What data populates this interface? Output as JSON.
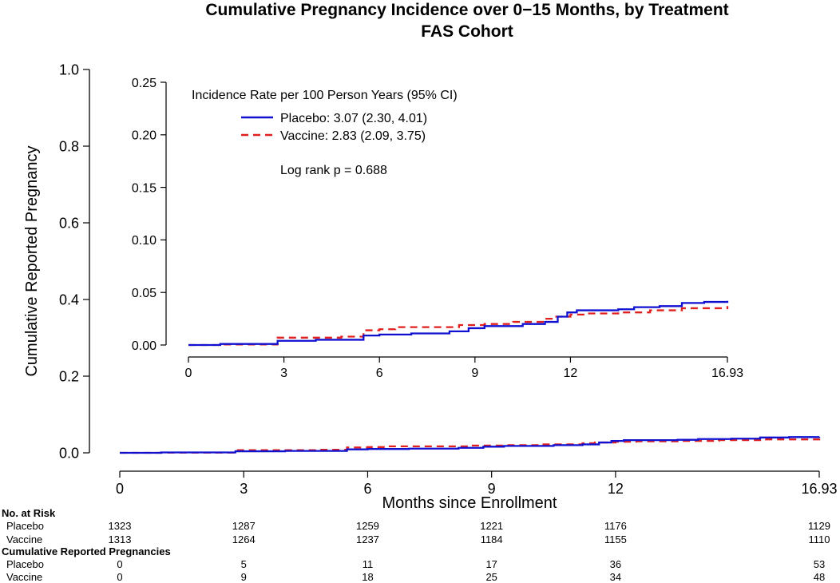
{
  "title_line1": "Cumulative Pregnancy Incidence over 0−15 Months, by Treatment",
  "title_line2": "FAS Cohort",
  "colors": {
    "placebo": "#1010d0",
    "vaccine": "#e0201e"
  },
  "chart_data": [
    {
      "type": "line",
      "role": "main",
      "xlabel": "Months since Enrollment",
      "ylabel": "Cumulative Reported Pregnancy",
      "xlim": [
        0,
        16.93
      ],
      "ylim": [
        0,
        1.0
      ],
      "x_ticks": [
        0,
        3,
        6,
        9,
        12,
        16.93
      ],
      "x_tick_labels": [
        "0",
        "3",
        "6",
        "9",
        "12",
        "16.93"
      ],
      "y_ticks": [
        0,
        0.2,
        0.4,
        0.6,
        0.8,
        1.0
      ],
      "y_tick_labels": [
        "0.0",
        "0.2",
        "0.4",
        "0.6",
        "0.8",
        "1.0"
      ],
      "series": [
        {
          "name": "Placebo",
          "style": "solid",
          "step": true,
          "x": [
            0,
            1,
            2.8,
            4,
            5.5,
            6,
            7,
            8.2,
            8.8,
            9.3,
            10.5,
            11.2,
            11.6,
            11.9,
            12.2,
            13.5,
            14,
            14.8,
            15.5,
            16.2,
            16.93
          ],
          "y": [
            0,
            0.001,
            0.004,
            0.005,
            0.009,
            0.01,
            0.011,
            0.013,
            0.016,
            0.018,
            0.02,
            0.022,
            0.027,
            0.031,
            0.033,
            0.034,
            0.036,
            0.037,
            0.04,
            0.041,
            0.042
          ]
        },
        {
          "name": "Vaccine",
          "style": "dashed",
          "step": true,
          "x": [
            0,
            1,
            2.8,
            4.8,
            5.5,
            6,
            6.5,
            7.5,
            8.5,
            9.3,
            10.2,
            11.2,
            11.5,
            12,
            12.5,
            13.5,
            14.5,
            15.5,
            16.93
          ],
          "y": [
            0,
            0.0005,
            0.007,
            0.008,
            0.014,
            0.015,
            0.017,
            0.017,
            0.019,
            0.02,
            0.022,
            0.025,
            0.027,
            0.029,
            0.03,
            0.031,
            0.033,
            0.035,
            0.037
          ]
        }
      ]
    },
    {
      "type": "line",
      "role": "inset",
      "xlim": [
        0,
        16.93
      ],
      "ylim": [
        0,
        0.25
      ],
      "x_ticks": [
        0,
        3,
        6,
        9,
        12,
        16.93
      ],
      "x_tick_labels": [
        "0",
        "3",
        "6",
        "9",
        "12",
        "16.93"
      ],
      "y_ticks": [
        0,
        0.05,
        0.1,
        0.15,
        0.2,
        0.25
      ],
      "y_tick_labels": [
        "0.00",
        "0.05",
        "0.10",
        "0.15",
        "0.20",
        "0.25"
      ],
      "legend_title": "Incidence Rate per 100 Person Years (95% CI)",
      "legend": [
        {
          "label": "Placebo: 3.07 (2.30, 4.01)",
          "style": "solid"
        },
        {
          "label": "Vaccine: 2.83 (2.09, 3.75)",
          "style": "dashed"
        }
      ],
      "annotation": "Log rank p = 0.688",
      "series": [
        {
          "name": "Placebo",
          "style": "solid",
          "step": true,
          "x": [
            0,
            1,
            2.8,
            4,
            5.5,
            6,
            7,
            8.2,
            8.8,
            9.3,
            10.5,
            11.2,
            11.6,
            11.9,
            12.2,
            13.5,
            14,
            14.8,
            15.5,
            16.2,
            16.93
          ],
          "y": [
            0,
            0.001,
            0.004,
            0.005,
            0.009,
            0.01,
            0.011,
            0.013,
            0.016,
            0.018,
            0.02,
            0.022,
            0.027,
            0.031,
            0.033,
            0.034,
            0.036,
            0.037,
            0.04,
            0.041,
            0.042
          ]
        },
        {
          "name": "Vaccine",
          "style": "dashed",
          "step": true,
          "x": [
            0,
            1,
            2.8,
            4.8,
            5.5,
            6,
            6.5,
            7.5,
            8.5,
            9.3,
            10.2,
            11.2,
            11.5,
            12,
            12.5,
            13.5,
            14.5,
            15.5,
            16.93
          ],
          "y": [
            0,
            0.0005,
            0.007,
            0.008,
            0.014,
            0.015,
            0.017,
            0.017,
            0.019,
            0.02,
            0.022,
            0.025,
            0.027,
            0.029,
            0.03,
            0.031,
            0.033,
            0.035,
            0.037
          ]
        }
      ]
    }
  ],
  "risk_table": {
    "at_risk_header": "No. at Risk",
    "pregnancies_header": "Cumulative Reported Pregnancies",
    "at_risk": [
      {
        "label": "Placebo",
        "values": [
          "1323",
          "1287",
          "1259",
          "1221",
          "1176",
          "1129"
        ]
      },
      {
        "label": "Vaccine",
        "values": [
          "1313",
          "1264",
          "1237",
          "1184",
          "1155",
          "1110"
        ]
      }
    ],
    "pregnancies": [
      {
        "label": "Placebo",
        "values": [
          "0",
          "5",
          "11",
          "17",
          "36",
          "53"
        ]
      },
      {
        "label": "Vaccine",
        "values": [
          "0",
          "9",
          "18",
          "25",
          "34",
          "48"
        ]
      }
    ]
  }
}
